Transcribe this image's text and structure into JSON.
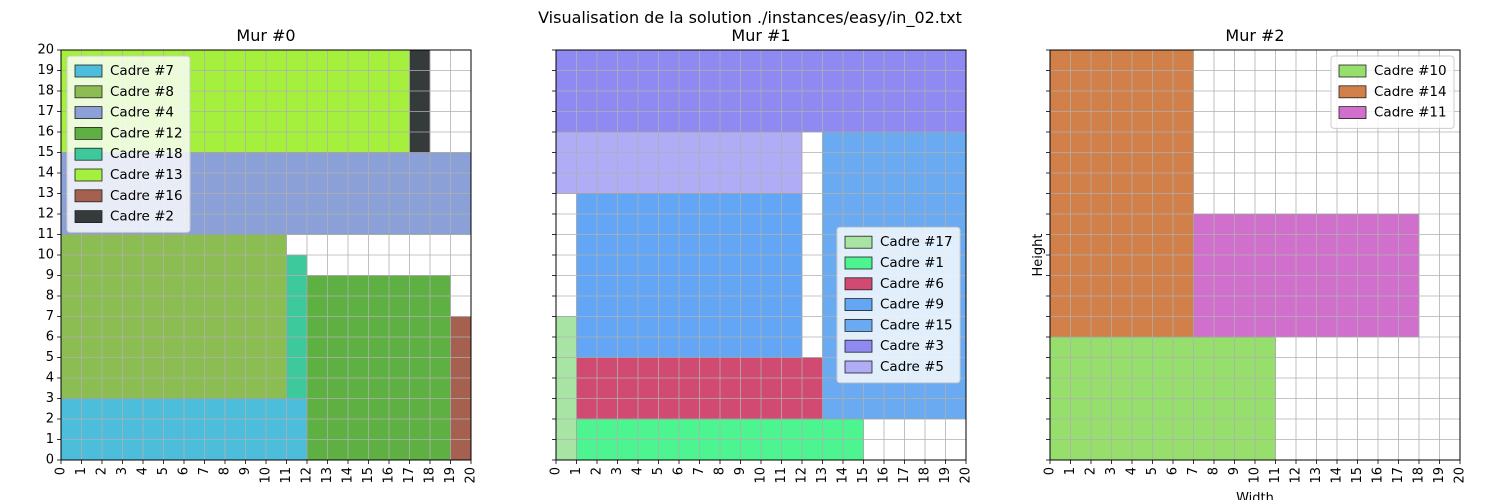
{
  "figure": {
    "suptitle": "Visualisation de la solution ./instances/easy/in_02.txt"
  },
  "chart_data": [
    {
      "type": "rectangles",
      "title": "Mur #0",
      "xlim": [
        0,
        20
      ],
      "ylim": [
        0,
        20
      ],
      "grid": true,
      "xlabel": "",
      "ylabel": "",
      "legend_position": "upper-left",
      "frames": [
        {
          "name": "Cadre #7",
          "x": 0,
          "y": 0,
          "w": 12,
          "h": 3,
          "color": "#4cbedb"
        },
        {
          "name": "Cadre #8",
          "x": 0,
          "y": 3,
          "w": 11,
          "h": 8,
          "color": "#8bbd52"
        },
        {
          "name": "Cadre #4",
          "x": 0,
          "y": 11,
          "w": 20,
          "h": 4,
          "color": "#8aa0d6"
        },
        {
          "name": "Cadre #12",
          "x": 12,
          "y": 0,
          "w": 7,
          "h": 9,
          "color": "#5fb043"
        },
        {
          "name": "Cadre #18",
          "x": 11,
          "y": 3,
          "w": 1,
          "h": 7,
          "color": "#3ec99c"
        },
        {
          "name": "Cadre #13",
          "x": 0,
          "y": 15,
          "w": 17,
          "h": 5,
          "color": "#a5f03c"
        },
        {
          "name": "Cadre #16",
          "x": 19,
          "y": 0,
          "w": 1,
          "h": 7,
          "color": "#a5604f"
        },
        {
          "name": "Cadre #2",
          "x": 17,
          "y": 15,
          "w": 1,
          "h": 5,
          "color": "#353a3a"
        }
      ]
    },
    {
      "type": "rectangles",
      "title": "Mur #1",
      "xlim": [
        0,
        20
      ],
      "ylim": [
        0,
        20
      ],
      "grid": true,
      "xlabel": "",
      "ylabel": "",
      "legend_position": "center-right",
      "frames": [
        {
          "name": "Cadre #17",
          "x": 0,
          "y": 0,
          "w": 1,
          "h": 7,
          "color": "#a8e5a4"
        },
        {
          "name": "Cadre #1",
          "x": 1,
          "y": 0,
          "w": 14,
          "h": 2,
          "color": "#4cf590"
        },
        {
          "name": "Cadre #6",
          "x": 1,
          "y": 2,
          "w": 12,
          "h": 3,
          "color": "#d14a72"
        },
        {
          "name": "Cadre #9",
          "x": 1,
          "y": 5,
          "w": 11,
          "h": 8,
          "color": "#62a6f5"
        },
        {
          "name": "Cadre #15",
          "x": 13,
          "y": 2,
          "w": 7,
          "h": 14,
          "color": "#6aaaf0"
        },
        {
          "name": "Cadre #3",
          "x": 0,
          "y": 16,
          "w": 20,
          "h": 4,
          "color": "#8f89f2"
        },
        {
          "name": "Cadre #5",
          "x": 0,
          "y": 13,
          "w": 12,
          "h": 3,
          "color": "#b0acf5"
        }
      ]
    },
    {
      "type": "rectangles",
      "title": "Mur #2",
      "xlim": [
        0,
        20
      ],
      "ylim": [
        0,
        20
      ],
      "grid": true,
      "xlabel": "Width",
      "ylabel": "Height",
      "legend_position": "upper-right",
      "frames": [
        {
          "name": "Cadre #10",
          "x": 0,
          "y": 0,
          "w": 11,
          "h": 6,
          "color": "#97df6c"
        },
        {
          "name": "Cadre #14",
          "x": 0,
          "y": 6,
          "w": 7,
          "h": 14,
          "color": "#d08048"
        },
        {
          "name": "Cadre #11",
          "x": 7,
          "y": 6,
          "w": 11,
          "h": 6,
          "color": "#d070cc"
        }
      ]
    }
  ]
}
